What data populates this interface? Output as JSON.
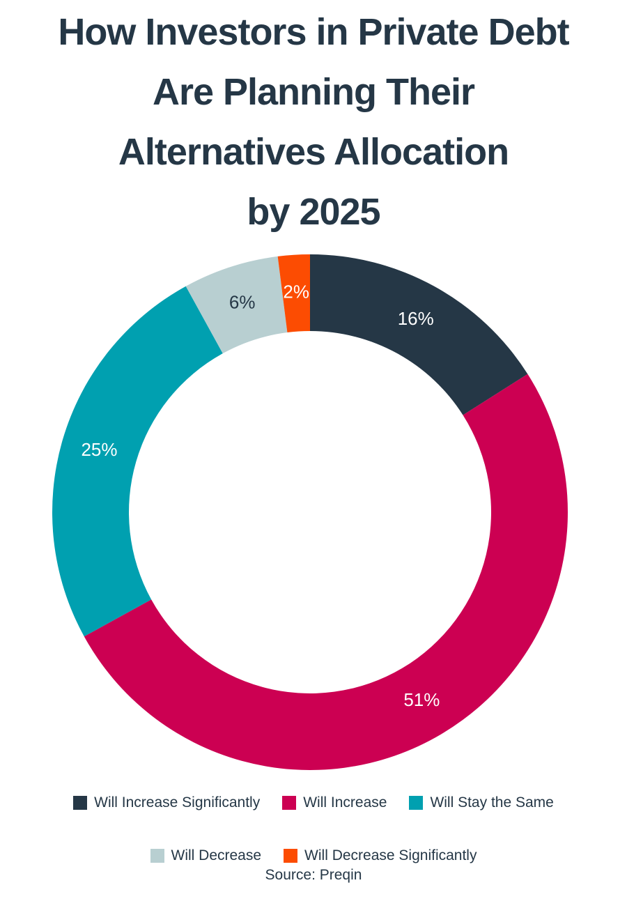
{
  "chart_data": {
    "type": "donut",
    "title": [
      "How Investors in Private Debt",
      "Are Planning Their",
      "Alternatives Allocation",
      "by 2025"
    ],
    "categories": [
      "Will Increase Significantly",
      "Will Increase",
      "Will Stay the Same",
      "Will Decrease",
      "Will Decrease Significantly"
    ],
    "values": [
      16,
      51,
      25,
      6,
      2
    ],
    "value_labels": [
      "16%",
      "51%",
      "25%",
      "6%",
      "2%"
    ],
    "colors": [
      "#253746",
      "#cc0052",
      "#00a0b0",
      "#b8cfd1",
      "#fc4c02"
    ],
    "label_colors": [
      "#ffffff",
      "#ffffff",
      "#ffffff",
      "#253746",
      "#ffffff"
    ],
    "source": "Source: Preqin"
  }
}
